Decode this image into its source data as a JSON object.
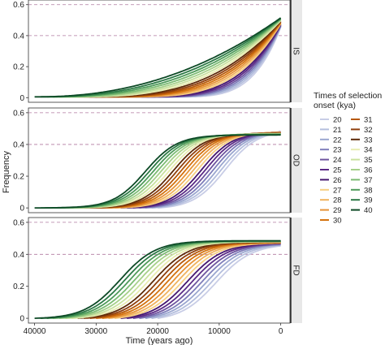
{
  "chart_data": {
    "type": "line",
    "facets": [
      "IS",
      "OD",
      "FD"
    ],
    "x_label": "Time (years ago)",
    "y_label": "Frequency",
    "x_range": [
      41000,
      -1500
    ],
    "x_ticks": [
      40000,
      30000,
      20000,
      10000,
      0
    ],
    "x_tick_labels": [
      "40000",
      "30000",
      "20000",
      "10000",
      "0"
    ],
    "y_range": [
      -0.03,
      0.63
    ],
    "y_ticks": [
      0,
      0.2,
      0.4,
      0.6
    ],
    "y_tick_labels": [
      "0",
      "0.2",
      "0.4",
      "0.6"
    ],
    "reference_lines": [
      0.4,
      0.6
    ],
    "legend": {
      "title_lines": [
        "Times of selection",
        "onset (kya)"
      ],
      "placement": "right"
    },
    "series": [
      {
        "name": "20",
        "onset": 20000,
        "color": "#c8cde6"
      },
      {
        "name": "21",
        "onset": 21000,
        "color": "#b4bedd"
      },
      {
        "name": "22",
        "onset": 22000,
        "color": "#9aa6cf"
      },
      {
        "name": "23",
        "onset": 23000,
        "color": "#7f7eba"
      },
      {
        "name": "24",
        "onset": 24000,
        "color": "#6e559f"
      },
      {
        "name": "25",
        "onset": 25000,
        "color": "#5b2a86"
      },
      {
        "name": "26",
        "onset": 26000,
        "color": "#451770"
      },
      {
        "name": "27",
        "onset": 27000,
        "color": "#f6cf82"
      },
      {
        "name": "28",
        "onset": 28000,
        "color": "#f0b25e"
      },
      {
        "name": "29",
        "onset": 29000,
        "color": "#e69338"
      },
      {
        "name": "30",
        "onset": 30000,
        "color": "#d4730f"
      },
      {
        "name": "31",
        "onset": 31000,
        "color": "#b65808"
      },
      {
        "name": "32",
        "onset": 32000,
        "color": "#8f3f0d"
      },
      {
        "name": "33",
        "onset": 33000,
        "color": "#5e2a08"
      },
      {
        "name": "34",
        "onset": 34000,
        "color": "#e8ecb0"
      },
      {
        "name": "35",
        "onset": 35000,
        "color": "#c9e19e"
      },
      {
        "name": "36",
        "onset": 36000,
        "color": "#a6d08a"
      },
      {
        "name": "37",
        "onset": 37000,
        "color": "#7bbb72"
      },
      {
        "name": "38",
        "onset": 38000,
        "color": "#4f9b5a"
      },
      {
        "name": "39",
        "onset": 39000,
        "color": "#2c7a45"
      },
      {
        "name": "40",
        "onset": 40000,
        "color": "#0d4a26"
      }
    ]
  }
}
